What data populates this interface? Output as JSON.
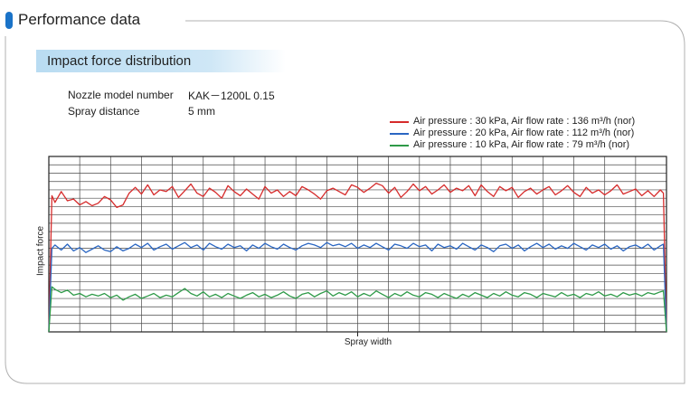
{
  "header": {
    "title": "Performance data"
  },
  "section": {
    "title": "Impact force distribution"
  },
  "spec": {
    "nozzle_label": "Nozzle model number",
    "nozzle_value": "KAK－1200L  0.15",
    "distance_label": "Spray distance",
    "distance_value": "5 mm"
  },
  "chart_data": {
    "type": "line",
    "xlabel": "Spray width",
    "ylabel": "Impact force",
    "grid": true,
    "legend_position": "top-right",
    "xlim": [
      0,
      100
    ],
    "ylim": [
      0,
      21
    ],
    "series": [
      {
        "name": "Air pressure : 30 kPa,   Air flow rate : 136 m³/h  (nor)",
        "color": "#d62b2b",
        "x": [
          0,
          0.5,
          1,
          2,
          3,
          4,
          5,
          6,
          7,
          8,
          9,
          10,
          11,
          12,
          13,
          14,
          15,
          16,
          17,
          18,
          19,
          20,
          21,
          22,
          23,
          24,
          25,
          26,
          27,
          28,
          29,
          30,
          31,
          32,
          33,
          34,
          35,
          36,
          37,
          38,
          39,
          40,
          41,
          42,
          43,
          44,
          45,
          46,
          47,
          48,
          49,
          50,
          51,
          52,
          53,
          54,
          55,
          56,
          57,
          58,
          59,
          60,
          61,
          62,
          63,
          64,
          65,
          66,
          67,
          68,
          69,
          70,
          71,
          72,
          73,
          74,
          75,
          76,
          77,
          78,
          79,
          80,
          81,
          82,
          83,
          84,
          85,
          86,
          87,
          88,
          89,
          90,
          91,
          92,
          93,
          94,
          95,
          96,
          97,
          98,
          99,
          99.5,
          100
        ],
        "values": [
          0,
          16.3,
          15.5,
          16.8,
          15.7,
          15.9,
          15.2,
          15.6,
          15.1,
          15.4,
          16.2,
          15.8,
          14.9,
          15.2,
          16.6,
          17.3,
          16.5,
          17.6,
          16.4,
          17.0,
          16.8,
          17.4,
          16.1,
          16.9,
          17.7,
          16.6,
          16.2,
          17.2,
          16.7,
          16.0,
          17.5,
          16.8,
          16.3,
          17.1,
          16.5,
          15.9,
          17.4,
          16.6,
          17.0,
          16.2,
          16.8,
          16.3,
          17.4,
          17.0,
          16.5,
          15.9,
          16.9,
          17.2,
          16.8,
          16.4,
          17.6,
          17.3,
          16.7,
          17.2,
          17.8,
          17.5,
          16.6,
          17.3,
          16.1,
          16.8,
          17.7,
          16.9,
          17.4,
          16.5,
          17.0,
          17.6,
          16.7,
          17.2,
          16.9,
          17.5,
          16.3,
          17.6,
          16.8,
          16.2,
          17.4,
          16.9,
          17.3,
          16.1,
          16.8,
          17.2,
          16.5,
          17.0,
          17.4,
          16.4,
          16.9,
          17.5,
          16.7,
          16.2,
          17.3,
          16.6,
          17.0,
          16.4,
          16.9,
          17.6,
          16.5,
          16.8,
          17.1,
          16.3,
          16.9,
          16.2,
          17.0,
          16.6,
          0
        ]
      },
      {
        "name": "Air pressure : 20 kPa,   Air flow rate : 112 m³/h  (nor)",
        "color": "#2a66c2",
        "x": [
          0,
          0.5,
          1,
          2,
          3,
          4,
          5,
          6,
          7,
          8,
          9,
          10,
          11,
          12,
          13,
          14,
          15,
          16,
          17,
          18,
          19,
          20,
          21,
          22,
          23,
          24,
          25,
          26,
          27,
          28,
          29,
          30,
          31,
          32,
          33,
          34,
          35,
          36,
          37,
          38,
          39,
          40,
          41,
          42,
          43,
          44,
          45,
          46,
          47,
          48,
          49,
          50,
          51,
          52,
          53,
          54,
          55,
          56,
          57,
          58,
          59,
          60,
          61,
          62,
          63,
          64,
          65,
          66,
          67,
          68,
          69,
          70,
          71,
          72,
          73,
          74,
          75,
          76,
          77,
          78,
          79,
          80,
          81,
          82,
          83,
          84,
          85,
          86,
          87,
          88,
          89,
          90,
          91,
          92,
          93,
          94,
          95,
          96,
          97,
          98,
          99,
          99.5,
          100
        ],
        "values": [
          0,
          10.0,
          10.4,
          9.8,
          10.5,
          9.7,
          10.1,
          9.5,
          9.9,
          10.3,
          9.8,
          9.6,
          10.2,
          9.7,
          10.0,
          10.5,
          10.1,
          10.6,
          9.8,
          10.2,
          10.5,
          9.9,
          10.3,
          10.7,
          10.1,
          10.4,
          9.8,
          10.6,
          10.2,
          9.9,
          10.5,
          10.1,
          10.3,
          9.7,
          10.4,
          10.0,
          10.6,
          10.2,
          9.9,
          10.5,
          10.1,
          9.8,
          10.3,
          10.6,
          10.4,
          10.1,
          10.7,
          10.3,
          10.5,
          10.2,
          10.6,
          10.0,
          10.4,
          10.1,
          10.6,
          10.2,
          9.8,
          10.5,
          10.3,
          10.0,
          10.6,
          10.2,
          10.4,
          9.7,
          10.5,
          10.1,
          10.3,
          9.9,
          10.6,
          10.2,
          9.8,
          10.4,
          10.1,
          9.6,
          10.3,
          10.5,
          10.0,
          10.4,
          9.7,
          10.2,
          10.6,
          10.1,
          10.5,
          9.9,
          10.3,
          10.0,
          10.6,
          10.2,
          9.8,
          10.4,
          10.1,
          10.5,
          9.9,
          10.3,
          9.7,
          10.2,
          10.4,
          10.0,
          10.5,
          9.8,
          10.3,
          10.5,
          0
        ]
      },
      {
        "name": "Air pressure : 10 kPa,   Air flow rate : 79 m³/h  (nor)",
        "color": "#2e9a48",
        "x": [
          0,
          0.5,
          1,
          2,
          3,
          4,
          5,
          6,
          7,
          8,
          9,
          10,
          11,
          12,
          13,
          14,
          15,
          16,
          17,
          18,
          19,
          20,
          21,
          22,
          23,
          24,
          25,
          26,
          27,
          28,
          29,
          30,
          31,
          32,
          33,
          34,
          35,
          36,
          37,
          38,
          39,
          40,
          41,
          42,
          43,
          44,
          45,
          46,
          47,
          48,
          49,
          50,
          51,
          52,
          53,
          54,
          55,
          56,
          57,
          58,
          59,
          60,
          61,
          62,
          63,
          64,
          65,
          66,
          67,
          68,
          69,
          70,
          71,
          72,
          73,
          74,
          75,
          76,
          77,
          78,
          79,
          80,
          81,
          82,
          83,
          84,
          85,
          86,
          87,
          88,
          89,
          90,
          91,
          92,
          93,
          94,
          95,
          96,
          97,
          98,
          99,
          99.5,
          100
        ],
        "values": [
          0,
          5.4,
          5.1,
          4.7,
          5.0,
          4.4,
          4.6,
          4.2,
          4.5,
          4.3,
          4.6,
          4.1,
          4.4,
          3.8,
          4.2,
          4.5,
          4.0,
          4.3,
          4.6,
          4.1,
          4.4,
          4.2,
          4.7,
          5.2,
          4.6,
          4.3,
          4.8,
          4.2,
          4.5,
          4.1,
          4.6,
          4.3,
          4.0,
          4.4,
          4.7,
          4.2,
          4.5,
          4.1,
          4.4,
          4.8,
          4.3,
          4.0,
          4.5,
          4.7,
          4.2,
          4.6,
          4.9,
          4.3,
          4.7,
          4.4,
          4.8,
          4.2,
          4.6,
          4.3,
          4.9,
          4.5,
          4.1,
          4.6,
          4.3,
          4.8,
          4.4,
          4.2,
          4.7,
          4.5,
          4.1,
          4.6,
          4.3,
          4.0,
          4.5,
          4.2,
          4.7,
          4.4,
          4.1,
          4.6,
          4.3,
          4.8,
          4.4,
          4.2,
          4.7,
          4.5,
          4.1,
          4.6,
          4.4,
          4.2,
          4.7,
          4.3,
          4.5,
          4.1,
          4.6,
          4.4,
          4.8,
          4.3,
          4.5,
          4.2,
          4.7,
          4.4,
          4.6,
          4.3,
          4.7,
          4.5,
          4.8,
          4.9,
          0
        ]
      }
    ]
  }
}
